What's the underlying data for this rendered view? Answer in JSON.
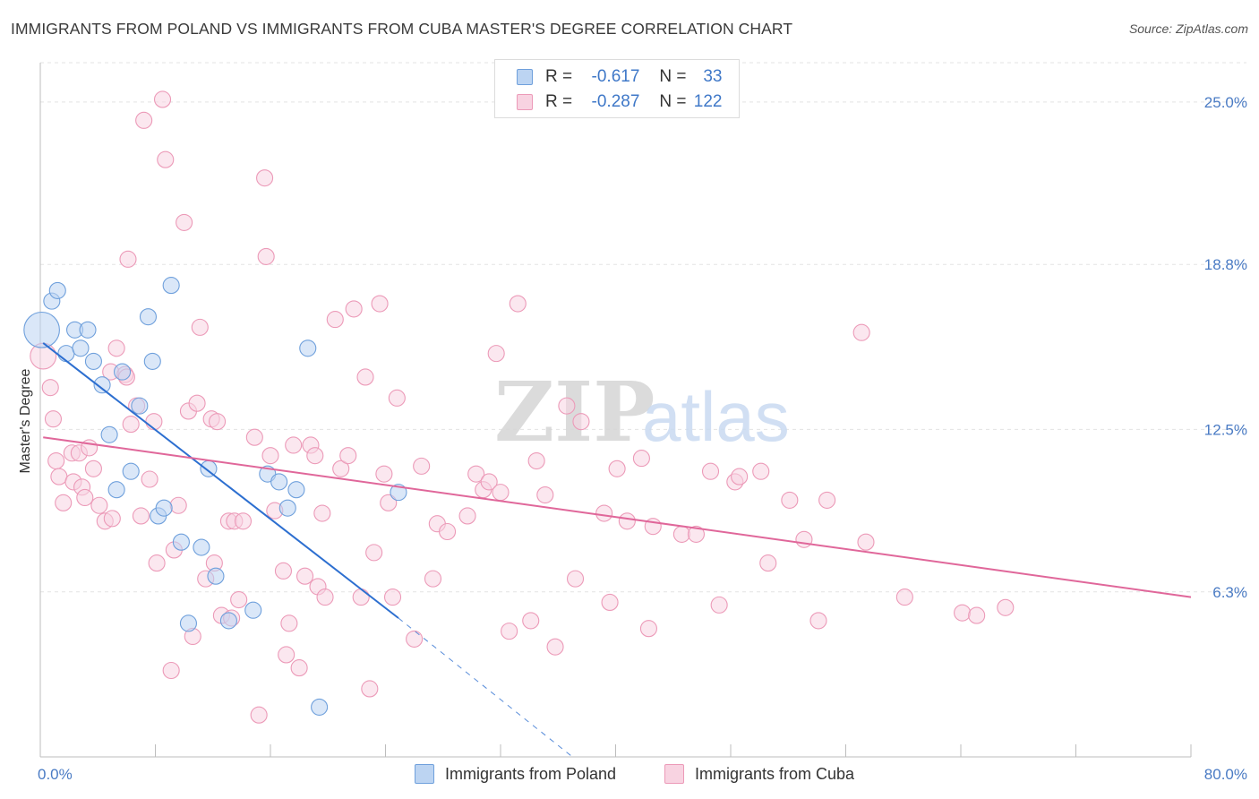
{
  "chart_data": {
    "type": "scatter",
    "title": "IMMIGRANTS FROM POLAND VS IMMIGRANTS FROM CUBA MASTER'S DEGREE CORRELATION CHART",
    "source": "Source: ZipAtlas.com",
    "xlabel": "",
    "ylabel": "Master's Degree",
    "xlim": [
      0,
      80
    ],
    "ylim": [
      0,
      26.5
    ],
    "x_tick_labels": [
      "0.0%",
      "80.0%"
    ],
    "y_ticks": [
      6.3,
      12.5,
      18.8,
      25.0
    ],
    "y_tick_labels": [
      "6.3%",
      "12.5%",
      "18.8%",
      "25.0%"
    ],
    "grid": true,
    "watermark": {
      "zip": "ZIP",
      "atlas": "atlas"
    },
    "legend": {
      "position": "top-center",
      "entries": [
        {
          "r_label": "R =",
          "r_value": "-0.617",
          "n_label": "N =",
          "n_value": "33"
        },
        {
          "r_label": "R =",
          "r_value": "-0.287",
          "n_label": "N =",
          "n_value": "122"
        }
      ]
    },
    "series": [
      {
        "name": "Immigrants from Poland",
        "color": "#6fa0dc",
        "fill": "#bcd4f2",
        "line_color": "#2d6fd0",
        "trend": {
          "x0": 0.2,
          "y0": 15.8,
          "x1": 24.9,
          "y1": 5.3,
          "dash_x1": 37,
          "dash_y1": 0.0
        },
        "points": [
          [
            0.1,
            16.3,
            2.2
          ],
          [
            0.8,
            17.4,
            1
          ],
          [
            1.2,
            17.8,
            1
          ],
          [
            1.8,
            15.4,
            1
          ],
          [
            2.4,
            16.3,
            1
          ],
          [
            2.8,
            15.6,
            1
          ],
          [
            3.3,
            16.3,
            1
          ],
          [
            3.7,
            15.1,
            1
          ],
          [
            4.3,
            14.2,
            1
          ],
          [
            4.8,
            12.3,
            1
          ],
          [
            5.3,
            10.2,
            1
          ],
          [
            5.7,
            14.7,
            1
          ],
          [
            6.3,
            10.9,
            1
          ],
          [
            6.9,
            13.4,
            1
          ],
          [
            7.5,
            16.8,
            1
          ],
          [
            7.8,
            15.1,
            1
          ],
          [
            8.2,
            9.2,
            1
          ],
          [
            8.6,
            9.5,
            1
          ],
          [
            9.1,
            18.0,
            1
          ],
          [
            9.8,
            8.2,
            1
          ],
          [
            10.3,
            5.1,
            1
          ],
          [
            11.2,
            8.0,
            1
          ],
          [
            11.7,
            11.0,
            1
          ],
          [
            12.2,
            6.9,
            1
          ],
          [
            13.1,
            5.2,
            1
          ],
          [
            14.8,
            5.6,
            1
          ],
          [
            15.8,
            10.8,
            1
          ],
          [
            16.6,
            10.5,
            1
          ],
          [
            17.2,
            9.5,
            1
          ],
          [
            17.8,
            10.2,
            1
          ],
          [
            18.6,
            15.6,
            1
          ],
          [
            19.4,
            1.9,
            1
          ],
          [
            24.9,
            10.1,
            1
          ]
        ]
      },
      {
        "name": "Immigrants from Cuba",
        "color": "#ec9ab8",
        "fill": "#f8d3e1",
        "line_color": "#e0679a",
        "trend": {
          "x0": 0.2,
          "y0": 12.2,
          "x1": 80.0,
          "y1": 6.1
        },
        "points": [
          [
            0.2,
            15.3,
            1.6
          ],
          [
            0.7,
            14.1,
            1
          ],
          [
            0.9,
            12.9,
            1
          ],
          [
            1.1,
            11.3,
            1
          ],
          [
            1.3,
            10.7,
            1
          ],
          [
            1.6,
            9.7,
            1
          ],
          [
            2.2,
            11.6,
            1
          ],
          [
            2.3,
            10.5,
            1
          ],
          [
            2.7,
            11.6,
            1
          ],
          [
            2.9,
            10.3,
            1
          ],
          [
            3.1,
            9.9,
            1
          ],
          [
            3.4,
            11.8,
            1
          ],
          [
            3.7,
            11.0,
            1
          ],
          [
            4.1,
            9.6,
            1
          ],
          [
            4.5,
            9.0,
            1
          ],
          [
            4.9,
            14.7,
            1
          ],
          [
            5.0,
            9.1,
            1
          ],
          [
            5.3,
            15.6,
            1
          ],
          [
            5.9,
            14.6,
            1
          ],
          [
            6.0,
            14.5,
            1
          ],
          [
            6.1,
            19.0,
            1
          ],
          [
            6.3,
            12.7,
            1
          ],
          [
            6.7,
            13.4,
            1
          ],
          [
            7.0,
            9.2,
            1
          ],
          [
            7.2,
            24.3,
            1
          ],
          [
            7.6,
            10.6,
            1
          ],
          [
            7.9,
            12.8,
            1
          ],
          [
            8.1,
            7.4,
            1
          ],
          [
            8.5,
            25.1,
            1
          ],
          [
            8.7,
            22.8,
            1
          ],
          [
            9.1,
            3.3,
            1
          ],
          [
            9.3,
            7.9,
            1
          ],
          [
            9.6,
            9.6,
            1
          ],
          [
            10.0,
            20.4,
            1
          ],
          [
            10.3,
            13.2,
            1
          ],
          [
            10.6,
            4.6,
            1
          ],
          [
            10.9,
            13.5,
            1
          ],
          [
            11.1,
            16.4,
            1
          ],
          [
            11.5,
            6.8,
            1
          ],
          [
            11.9,
            12.9,
            1
          ],
          [
            12.1,
            7.4,
            1
          ],
          [
            12.3,
            12.8,
            1
          ],
          [
            12.6,
            5.4,
            1
          ],
          [
            13.1,
            9.0,
            1
          ],
          [
            13.3,
            5.3,
            1
          ],
          [
            13.5,
            9.0,
            1
          ],
          [
            13.8,
            6.0,
            1
          ],
          [
            14.1,
            9.0,
            1
          ],
          [
            14.9,
            12.2,
            1
          ],
          [
            15.2,
            1.6,
            1
          ],
          [
            15.6,
            22.1,
            1
          ],
          [
            15.7,
            19.1,
            1
          ],
          [
            16.0,
            11.5,
            1
          ],
          [
            16.3,
            9.4,
            1
          ],
          [
            16.9,
            7.1,
            1
          ],
          [
            17.1,
            3.9,
            1
          ],
          [
            17.3,
            5.1,
            1
          ],
          [
            17.6,
            11.9,
            1
          ],
          [
            18.0,
            3.4,
            1
          ],
          [
            18.4,
            6.9,
            1
          ],
          [
            18.8,
            11.9,
            1
          ],
          [
            19.1,
            11.5,
            1
          ],
          [
            19.3,
            6.5,
            1
          ],
          [
            19.6,
            9.3,
            1
          ],
          [
            19.8,
            6.1,
            1
          ],
          [
            20.5,
            16.7,
            1
          ],
          [
            20.9,
            11.0,
            1
          ],
          [
            21.4,
            11.5,
            1
          ],
          [
            21.8,
            17.1,
            1
          ],
          [
            22.3,
            6.1,
            1
          ],
          [
            22.6,
            14.5,
            1
          ],
          [
            22.9,
            2.6,
            1
          ],
          [
            23.2,
            7.8,
            1
          ],
          [
            23.6,
            17.3,
            1
          ],
          [
            23.9,
            10.8,
            1
          ],
          [
            24.2,
            9.7,
            1
          ],
          [
            24.5,
            6.1,
            1
          ],
          [
            24.8,
            13.7,
            1
          ],
          [
            26.0,
            4.5,
            1
          ],
          [
            26.5,
            11.1,
            1
          ],
          [
            27.3,
            6.8,
            1
          ],
          [
            27.6,
            8.9,
            1
          ],
          [
            28.3,
            8.6,
            1
          ],
          [
            29.7,
            9.2,
            1
          ],
          [
            30.3,
            10.8,
            1
          ],
          [
            30.8,
            10.2,
            1
          ],
          [
            31.2,
            10.5,
            1
          ],
          [
            31.7,
            15.4,
            1
          ],
          [
            32.0,
            10.1,
            1
          ],
          [
            32.6,
            4.8,
            1
          ],
          [
            33.2,
            17.3,
            1
          ],
          [
            34.1,
            5.2,
            1
          ],
          [
            34.5,
            11.3,
            1
          ],
          [
            35.1,
            10.0,
            1
          ],
          [
            35.8,
            4.2,
            1
          ],
          [
            36.6,
            13.4,
            1
          ],
          [
            37.2,
            6.8,
            1
          ],
          [
            37.6,
            12.8,
            1
          ],
          [
            39.2,
            9.3,
            1
          ],
          [
            39.6,
            5.9,
            1
          ],
          [
            40.1,
            11.0,
            1
          ],
          [
            40.8,
            9.0,
            1
          ],
          [
            41.8,
            11.4,
            1
          ],
          [
            42.3,
            4.9,
            1
          ],
          [
            42.6,
            8.8,
            1
          ],
          [
            44.6,
            8.5,
            1
          ],
          [
            45.6,
            8.5,
            1
          ],
          [
            46.6,
            10.9,
            1
          ],
          [
            47.2,
            5.8,
            1
          ],
          [
            48.3,
            10.5,
            1
          ],
          [
            48.6,
            10.7,
            1
          ],
          [
            50.1,
            10.9,
            1
          ],
          [
            50.6,
            7.4,
            1
          ],
          [
            52.1,
            9.8,
            1
          ],
          [
            53.1,
            8.3,
            1
          ],
          [
            54.1,
            5.2,
            1
          ],
          [
            54.7,
            9.8,
            1
          ],
          [
            57.1,
            16.2,
            1
          ],
          [
            57.4,
            8.2,
            1
          ],
          [
            60.1,
            6.1,
            1
          ],
          [
            64.1,
            5.5,
            1
          ],
          [
            65.1,
            5.4,
            1
          ],
          [
            67.1,
            5.7,
            1
          ]
        ]
      }
    ]
  }
}
